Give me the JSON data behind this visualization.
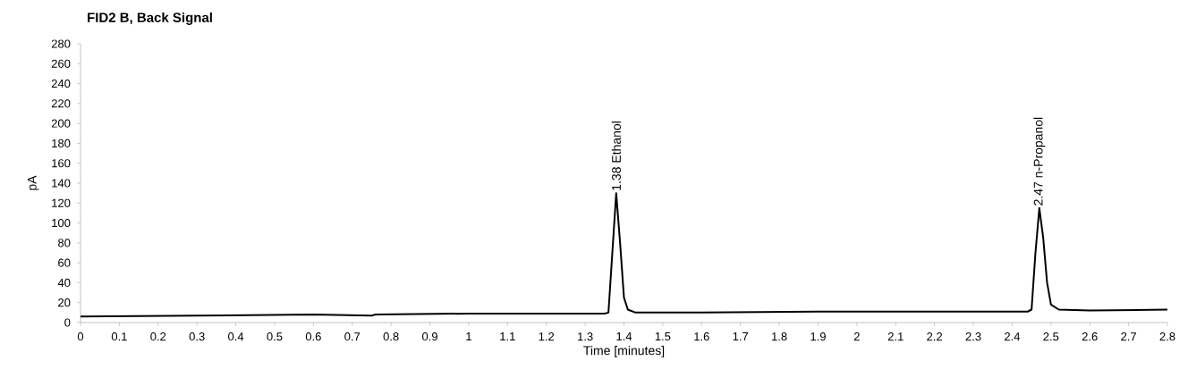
{
  "chart_data": {
    "type": "line",
    "title": "FID2 B, Back Signal",
    "xlabel": "Time [minutes]",
    "ylabel": "pA",
    "color": "#000000",
    "x": [
      0,
      0.3,
      0.6,
      0.75,
      0.76,
      1.0,
      1.3,
      1.35,
      1.36,
      1.37,
      1.38,
      1.39,
      1.4,
      1.41,
      1.43,
      1.6,
      1.9,
      2.0,
      2.3,
      2.44,
      2.45,
      2.46,
      2.47,
      2.48,
      2.49,
      2.5,
      2.52,
      2.6,
      2.8
    ],
    "values": [
      6,
      7,
      8,
      7,
      8,
      9,
      9,
      9,
      10,
      70,
      130,
      80,
      25,
      13,
      10,
      10,
      11,
      11,
      11,
      11,
      13,
      70,
      115,
      85,
      40,
      18,
      13,
      12,
      13
    ],
    "xlim": [
      0,
      2.8
    ],
    "ylim": [
      0,
      280
    ],
    "xticks": [
      0,
      0.1,
      0.2,
      0.3,
      0.4,
      0.5,
      0.6,
      0.7,
      0.8,
      0.9,
      1,
      1.1,
      1.2,
      1.3,
      1.4,
      1.5,
      1.6,
      1.7,
      1.8,
      1.9,
      2,
      2.1,
      2.2,
      2.3,
      2.4,
      2.5,
      2.6,
      2.7,
      2.8
    ],
    "yticks": [
      0,
      20,
      40,
      60,
      80,
      100,
      120,
      140,
      160,
      180,
      200,
      220,
      240,
      260,
      280
    ],
    "annotations": [
      {
        "text": "1.38  Ethanol",
        "x": 1.38,
        "y": 130
      },
      {
        "text": "2.47  n-Propanol",
        "x": 2.47,
        "y": 115
      }
    ]
  }
}
